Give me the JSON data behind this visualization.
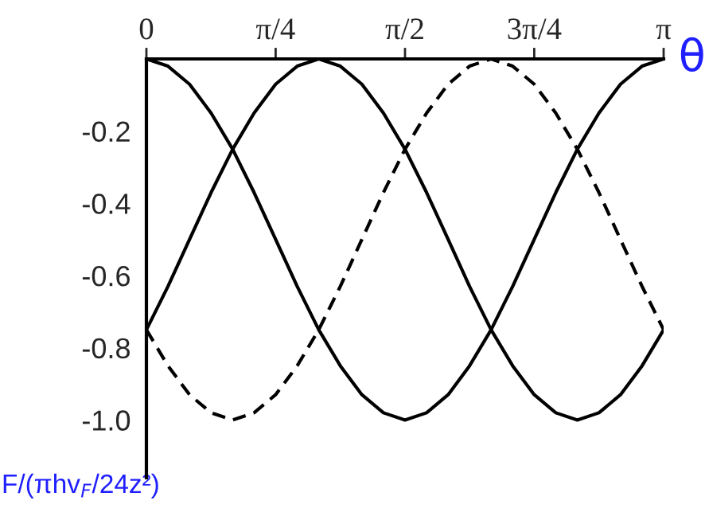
{
  "chart_data": {
    "type": "line",
    "xlabel": "θ",
    "ylabel": "F/(πhv$_{F}$/24z²)",
    "x": [
      0,
      0.131,
      0.262,
      0.393,
      0.524,
      0.654,
      0.785,
      0.916,
      1.047,
      1.178,
      1.309,
      1.44,
      1.571,
      1.702,
      1.833,
      1.963,
      2.094,
      2.225,
      2.356,
      2.487,
      2.618,
      2.749,
      2.88,
      3.011,
      3.142
    ],
    "series": [
      {
        "color": "#000000",
        "line_style": "solid",
        "values": [
          0,
          -0.02,
          -0.07,
          -0.15,
          -0.25,
          -0.37,
          -0.5,
          -0.63,
          -0.75,
          -0.85,
          -0.93,
          -0.98,
          -1,
          -0.98,
          -0.93,
          -0.85,
          -0.75,
          -0.63,
          -0.5,
          -0.37,
          -0.25,
          -0.15,
          -0.07,
          -0.02,
          0
        ]
      },
      {
        "color": "#000000",
        "line_style": "solid",
        "values": [
          -0.75,
          -0.63,
          -0.5,
          -0.37,
          -0.25,
          -0.15,
          -0.07,
          -0.02,
          0,
          -0.02,
          -0.07,
          -0.15,
          -0.25,
          -0.37,
          -0.5,
          -0.63,
          -0.75,
          -0.85,
          -0.93,
          -0.98,
          -1,
          -0.98,
          -0.93,
          -0.85,
          -0.75
        ]
      },
      {
        "color": "#000000",
        "line_style": "dashed",
        "values": [
          -0.75,
          -0.85,
          -0.93,
          -0.98,
          -1,
          -0.98,
          -0.93,
          -0.85,
          -0.75,
          -0.63,
          -0.5,
          -0.37,
          -0.25,
          -0.15,
          -0.07,
          -0.02,
          0,
          -0.02,
          -0.07,
          -0.15,
          -0.25,
          -0.37,
          -0.5,
          -0.63,
          -0.75
        ]
      }
    ],
    "xlim": [
      0,
      3.142
    ],
    "xticks": [
      {
        "value": 0,
        "label": "0"
      },
      {
        "value": 0.785,
        "label": "π/4"
      },
      {
        "value": 1.571,
        "label": "π/2"
      },
      {
        "value": 2.356,
        "label": "3π/4"
      },
      {
        "value": 3.142,
        "label": "π"
      }
    ],
    "ylim": [
      -1.16,
      0
    ],
    "yticks": [
      -0.2,
      -0.4,
      -0.6,
      -0.8,
      {
        "value": -1,
        "label": "-1.0"
      }
    ],
    "grid": false,
    "legend": false
  }
}
